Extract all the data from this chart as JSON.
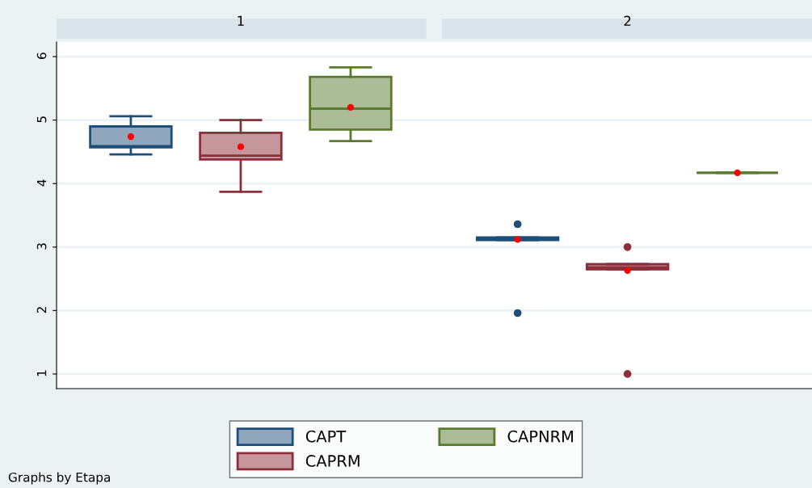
{
  "chart_data": {
    "type": "box",
    "categories": [
      "1",
      "2"
    ],
    "ylim": [
      0.77,
      6.23
    ],
    "yticks": [
      1,
      2,
      3,
      4,
      5,
      6
    ],
    "grid": "y",
    "legend": "bottom",
    "annotations": [
      "Graphs by Etapa"
    ],
    "series": [
      {
        "name": "CAPT",
        "color": "#1f4e79",
        "boxes": [
          {
            "low": 4.46,
            "q1": 4.57,
            "median": 4.59,
            "q3": 4.9,
            "high": 5.06,
            "mean": 4.74
          },
          {
            "low": 3.11,
            "q1": 3.11,
            "median": 3.13,
            "q3": 3.15,
            "high": 3.15,
            "mean": 3.12,
            "outliers": [
              3.36,
              1.96
            ]
          }
        ]
      },
      {
        "name": "CAPRM",
        "color": "#8b2f3a",
        "boxes": [
          {
            "low": 3.87,
            "q1": 4.38,
            "median": 4.44,
            "q3": 4.8,
            "high": 5.0,
            "mean": 4.58
          },
          {
            "low": 2.65,
            "q1": 2.65,
            "median": 2.68,
            "q3": 2.73,
            "high": 2.73,
            "mean": 2.63,
            "outliers": [
              3.0,
              1.0
            ]
          }
        ]
      },
      {
        "name": "CAPNRM",
        "color": "#5a7a2e",
        "boxes": [
          {
            "low": 4.67,
            "q1": 4.85,
            "median": 5.18,
            "q3": 5.68,
            "high": 5.83,
            "mean": 5.2
          },
          {
            "low": 4.17,
            "q1": 4.17,
            "median": 4.17,
            "q3": 4.17,
            "high": 4.17,
            "mean": 4.17
          }
        ]
      }
    ]
  }
}
